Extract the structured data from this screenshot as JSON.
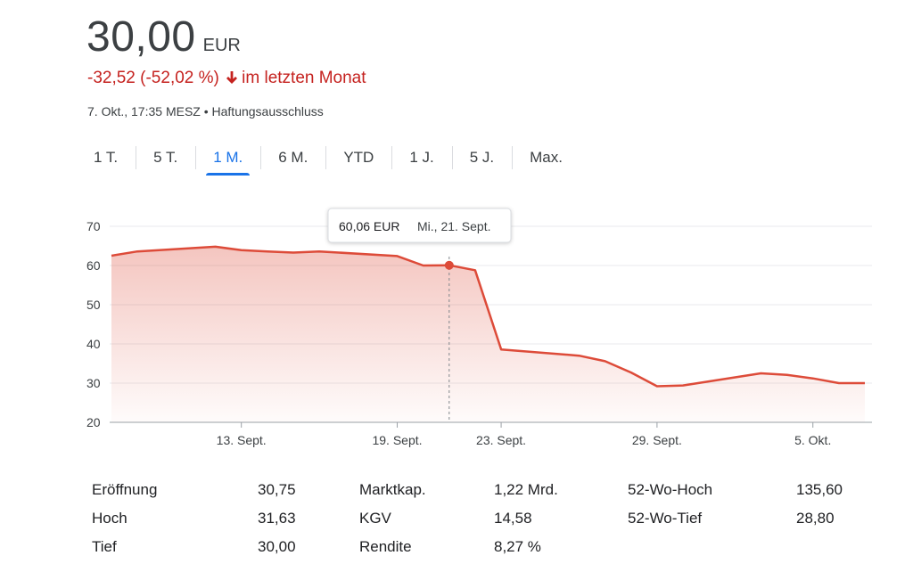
{
  "quote": {
    "price": "30,00",
    "currency": "EUR",
    "change": "-32,52 (-52,02 %)",
    "period": "im letzten Monat",
    "timestamp": "7. Okt., 17:35 MESZ",
    "disclaimer": "Haftungsausschluss",
    "colors": {
      "down": "#c5221f",
      "accent": "#1a73e8"
    }
  },
  "tabs": [
    {
      "label": "1 T."
    },
    {
      "label": "5 T."
    },
    {
      "label": "1 M.",
      "active": true
    },
    {
      "label": "6 M."
    },
    {
      "label": "YTD"
    },
    {
      "label": "1 J."
    },
    {
      "label": "5 J."
    },
    {
      "label": "Max."
    }
  ],
  "tooltip": {
    "value": "60,06 EUR",
    "date": "Mi., 21. Sept."
  },
  "chart_data": {
    "type": "area",
    "x": [
      "2022-09-08",
      "2022-09-09",
      "2022-09-12",
      "2022-09-13",
      "2022-09-14",
      "2022-09-15",
      "2022-09-16",
      "2022-09-19",
      "2022-09-20",
      "2022-09-21",
      "2022-09-22",
      "2022-09-23",
      "2022-09-26",
      "2022-09-27",
      "2022-09-28",
      "2022-09-29",
      "2022-09-30",
      "2022-10-03",
      "2022-10-04",
      "2022-10-05",
      "2022-10-06",
      "2022-10-07"
    ],
    "y": [
      62.5,
      63.6,
      64.8,
      63.9,
      63.6,
      63.3,
      63.6,
      62.4,
      60.0,
      60.06,
      58.8,
      38.6,
      37.0,
      35.6,
      32.7,
      29.2,
      29.4,
      32.5,
      32.1,
      31.2,
      30.0,
      30.0
    ],
    "ylim": [
      20,
      70
    ],
    "yticks": [
      20,
      30,
      40,
      50,
      60,
      70
    ],
    "xticks": [
      {
        "x": "2022-09-13",
        "label": "13. Sept."
      },
      {
        "x": "2022-09-19",
        "label": "19. Sept."
      },
      {
        "x": "2022-09-23",
        "label": "23. Sept."
      },
      {
        "x": "2022-09-29",
        "label": "29. Sept."
      },
      {
        "x": "2022-10-05",
        "label": "5. Okt."
      }
    ],
    "highlight": "2022-09-21",
    "grid": true,
    "color": "#dd4b39"
  },
  "stats": [
    {
      "label": "Eröffnung",
      "value": "30,75"
    },
    {
      "label": "Hoch",
      "value": "31,63"
    },
    {
      "label": "Tief",
      "value": "30,00"
    },
    {
      "label": "Marktkap.",
      "value": "1,22 Mrd."
    },
    {
      "label": "KGV",
      "value": "14,58"
    },
    {
      "label": "Rendite",
      "value": "8,27 %"
    },
    {
      "label": "52-Wo-Hoch",
      "value": "135,60"
    },
    {
      "label": "52-Wo-Tief",
      "value": "28,80"
    }
  ]
}
